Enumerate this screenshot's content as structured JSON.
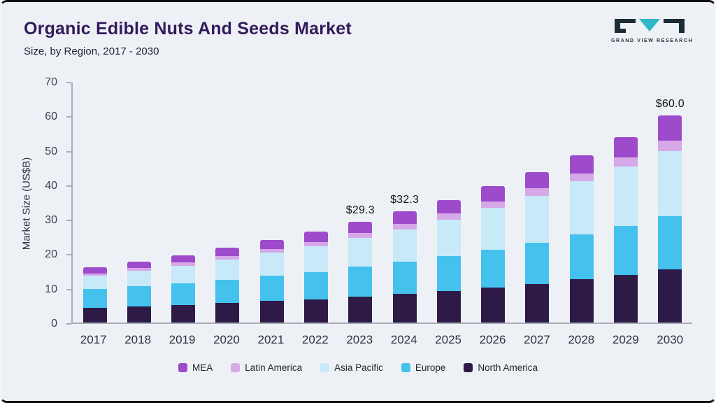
{
  "header": {
    "title": "Organic Edible Nuts And Seeds Market",
    "subtitle": "Size, by Region, 2017 - 2030",
    "logo_text": "GRAND VIEW RESEARCH"
  },
  "colors": {
    "background": "#edf1f5",
    "title": "#331a5b",
    "axis": "#a7aeb8",
    "logo_dark": "#1d2b36",
    "logo_teal": "#2fb9c6"
  },
  "chart_data": {
    "type": "bar",
    "stacked": true,
    "title": "Organic Edible Nuts And Seeds Market Size, by Region, 2017 - 2030",
    "xlabel": "",
    "ylabel": "Market Size (US$B)",
    "ylim": [
      0,
      70
    ],
    "yticks": [
      0,
      10,
      20,
      30,
      40,
      50,
      60,
      70
    ],
    "grid": false,
    "legend_position": "bottom",
    "categories": [
      "2017",
      "2018",
      "2019",
      "2020",
      "2021",
      "2022",
      "2023",
      "2024",
      "2025",
      "2026",
      "2027",
      "2028",
      "2029",
      "2030"
    ],
    "series": [
      {
        "name": "North America",
        "color": "#2e1a47",
        "values": [
          4.3,
          4.7,
          5.1,
          5.7,
          6.2,
          6.8,
          7.5,
          8.3,
          9.1,
          10.2,
          11.2,
          12.5,
          13.8,
          15.4
        ]
      },
      {
        "name": "Europe",
        "color": "#45c1ee",
        "values": [
          5.4,
          5.8,
          6.3,
          6.6,
          7.3,
          7.9,
          8.7,
          9.3,
          10.2,
          10.9,
          12.0,
          13.0,
          14.3,
          15.5
        ]
      },
      {
        "name": "Asia Pacific",
        "color": "#c8e9f8",
        "values": [
          3.9,
          4.5,
          5.1,
          6.0,
          6.7,
          7.5,
          8.4,
          9.5,
          10.6,
          12.1,
          13.6,
          15.4,
          17.1,
          18.9
        ]
      },
      {
        "name": "Latin America",
        "color": "#d7a8e8",
        "values": [
          0.7,
          0.8,
          0.9,
          1.0,
          1.1,
          1.2,
          1.4,
          1.5,
          1.7,
          1.9,
          2.1,
          2.3,
          2.6,
          2.9
        ]
      },
      {
        "name": "MEA",
        "color": "#9e4bcb",
        "values": [
          1.8,
          1.9,
          2.1,
          2.4,
          2.7,
          2.9,
          3.3,
          3.7,
          3.9,
          4.4,
          4.8,
          5.3,
          6.0,
          7.3
        ]
      }
    ],
    "totals": [
      16.1,
      17.7,
      19.5,
      21.7,
      24.0,
      26.3,
      29.3,
      32.3,
      35.5,
      39.5,
      43.7,
      48.5,
      53.8,
      60.0
    ],
    "annotations": [
      {
        "category": "2023",
        "label": "$29.3"
      },
      {
        "category": "2024",
        "label": "$32.3"
      },
      {
        "category": "2030",
        "label": "$60.0"
      }
    ]
  },
  "legend": [
    {
      "label": "MEA",
      "color": "#9e4bcb"
    },
    {
      "label": "Latin America",
      "color": "#d7a8e8"
    },
    {
      "label": "Asia Pacific",
      "color": "#c8e9f8"
    },
    {
      "label": "Europe",
      "color": "#45c1ee"
    },
    {
      "label": "North America",
      "color": "#2e1a47"
    }
  ]
}
